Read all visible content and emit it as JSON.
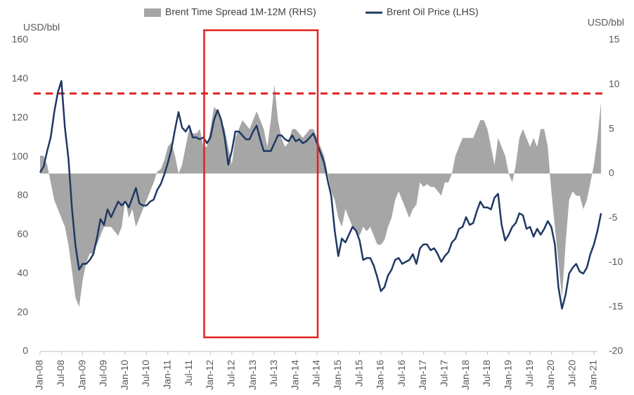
{
  "chart_data": {
    "type": "line_area",
    "y_unit_left": "USD/bbl",
    "y_unit_right": "USD/bbl",
    "categories": [
      "Jan-08",
      null,
      null,
      null,
      null,
      null,
      "Jul-08",
      null,
      null,
      null,
      null,
      null,
      "Jan-09",
      null,
      null,
      null,
      null,
      null,
      "Jul-09",
      null,
      null,
      null,
      null,
      null,
      "Jan-10",
      null,
      null,
      null,
      null,
      null,
      "Jul-10",
      null,
      null,
      null,
      null,
      null,
      "Jan-11",
      null,
      null,
      null,
      null,
      null,
      "Jul-11",
      null,
      null,
      null,
      null,
      null,
      "Jan-12",
      null,
      null,
      null,
      null,
      null,
      "Jul-12",
      null,
      null,
      null,
      null,
      null,
      "Jan-13",
      null,
      null,
      null,
      null,
      null,
      "Jul-13",
      null,
      null,
      null,
      null,
      null,
      "Jan-14",
      null,
      null,
      null,
      null,
      null,
      "Jul-14",
      null,
      null,
      null,
      null,
      null,
      "Jan-15",
      null,
      null,
      null,
      null,
      null,
      "Jul-15",
      null,
      null,
      null,
      null,
      null,
      "Jan-16",
      null,
      null,
      null,
      null,
      null,
      "Jul-16",
      null,
      null,
      null,
      null,
      null,
      "Jan-17",
      null,
      null,
      null,
      null,
      null,
      "Jul-17",
      null,
      null,
      null,
      null,
      null,
      "Jan-18",
      null,
      null,
      null,
      null,
      null,
      "Jul-18",
      null,
      null,
      null,
      null,
      null,
      "Jan-19",
      null,
      null,
      null,
      null,
      null,
      "Jul-19",
      null,
      null,
      null,
      null,
      null,
      "Jan-20",
      null,
      null,
      null,
      null,
      null,
      "Jul-20",
      null,
      null,
      null,
      null,
      null,
      "Jan-21",
      null,
      null
    ],
    "series": [
      {
        "name": "Brent Time Spread 1M-12M (RHS)",
        "color": "#a6a6a6",
        "axis": "y2",
        "kind": "area",
        "values": [
          2,
          2,
          1,
          -1,
          -3,
          -4,
          -5,
          -6,
          -8,
          -11,
          -14,
          -15,
          -12,
          -10,
          -9,
          -9,
          -8,
          -7,
          -6,
          -6,
          -6,
          -6.5,
          -7,
          -6,
          -3,
          -5,
          -4,
          -6,
          -5,
          -4,
          -3,
          -2,
          -1,
          0.2,
          0.5,
          1.5,
          3,
          3.5,
          2,
          0,
          1,
          3,
          5,
          4.5,
          4.5,
          5,
          3,
          3,
          5,
          7.5,
          7,
          6,
          5,
          3,
          1,
          4,
          5,
          6,
          5.5,
          5,
          6,
          7,
          6,
          5,
          3,
          6,
          10,
          6,
          4,
          3,
          3.5,
          5,
          5,
          4.5,
          4,
          4.5,
          5,
          5,
          4,
          3,
          2,
          0,
          -2,
          -3,
          -5,
          -6,
          -4,
          -5,
          -6,
          -6.5,
          -7,
          -6,
          -6.5,
          -6,
          -7,
          -8,
          -8,
          -7.5,
          -6,
          -5,
          -3,
          -2,
          -3,
          -4,
          -5,
          -4,
          -3.5,
          -1,
          -1.5,
          -1.2,
          -1.5,
          -1.5,
          -2,
          -2.5,
          -1,
          -1,
          0,
          2,
          3,
          4,
          4,
          4,
          4,
          5,
          6,
          6,
          5,
          3,
          1,
          4,
          3,
          2,
          0,
          -1,
          1,
          4,
          5,
          4,
          3,
          4,
          3,
          5,
          5,
          3,
          -2,
          -6,
          -10,
          -14,
          -8,
          -3,
          -2,
          -2.5,
          -2.5,
          -4,
          -3,
          -1,
          1,
          4,
          8
        ]
      },
      {
        "name": "Brent Oil Price (LHS)",
        "color": "#1f3864",
        "axis": "y",
        "kind": "line",
        "values": [
          92,
          95,
          103,
          110,
          123,
          133,
          139,
          115,
          99,
          73,
          54,
          42,
          45,
          45,
          47,
          50,
          58,
          68,
          65,
          73,
          69,
          73,
          77,
          75,
          77,
          74,
          79,
          84,
          76,
          75,
          75,
          77,
          78,
          83,
          86,
          91,
          97,
          104,
          114,
          123,
          115,
          113,
          116,
          110,
          110,
          109,
          110,
          107,
          110,
          119,
          124,
          119,
          110,
          96,
          103,
          113,
          113,
          111,
          109,
          109,
          113,
          116,
          109,
          103,
          103,
          103,
          107,
          111,
          111,
          109,
          108,
          111,
          108,
          109,
          107,
          108,
          110,
          112,
          107,
          102,
          97,
          88,
          80,
          62,
          49,
          58,
          56,
          60,
          64,
          62,
          57,
          47,
          48,
          48,
          44,
          38,
          31,
          33,
          39,
          42,
          47,
          48,
          45,
          46,
          47,
          50,
          45,
          53,
          55,
          55,
          52,
          53,
          50,
          46,
          49,
          51,
          56,
          58,
          63,
          64,
          69,
          65,
          66,
          72,
          77,
          74,
          74,
          73,
          79,
          81,
          65,
          57,
          60,
          64,
          66,
          71,
          70,
          63,
          64,
          59,
          63,
          60,
          63,
          67,
          64,
          55,
          33,
          22,
          29,
          40,
          43,
          45,
          41,
          40,
          43,
          50,
          55,
          62,
          71
        ]
      }
    ],
    "ylim": [
      0,
      160
    ],
    "yticks": [
      0,
      20,
      40,
      60,
      80,
      100,
      120,
      140,
      160
    ],
    "y2lim": [
      -20,
      15
    ],
    "y2ticks": [
      -20,
      -15,
      -10,
      -5,
      0,
      5,
      10,
      15
    ],
    "reference_line": {
      "axis": "y2",
      "value": 9,
      "color": "#e02020"
    },
    "highlight": {
      "from": "Jan-12",
      "to": "Jul-14",
      "color": "#e02020"
    },
    "legend": "top"
  }
}
